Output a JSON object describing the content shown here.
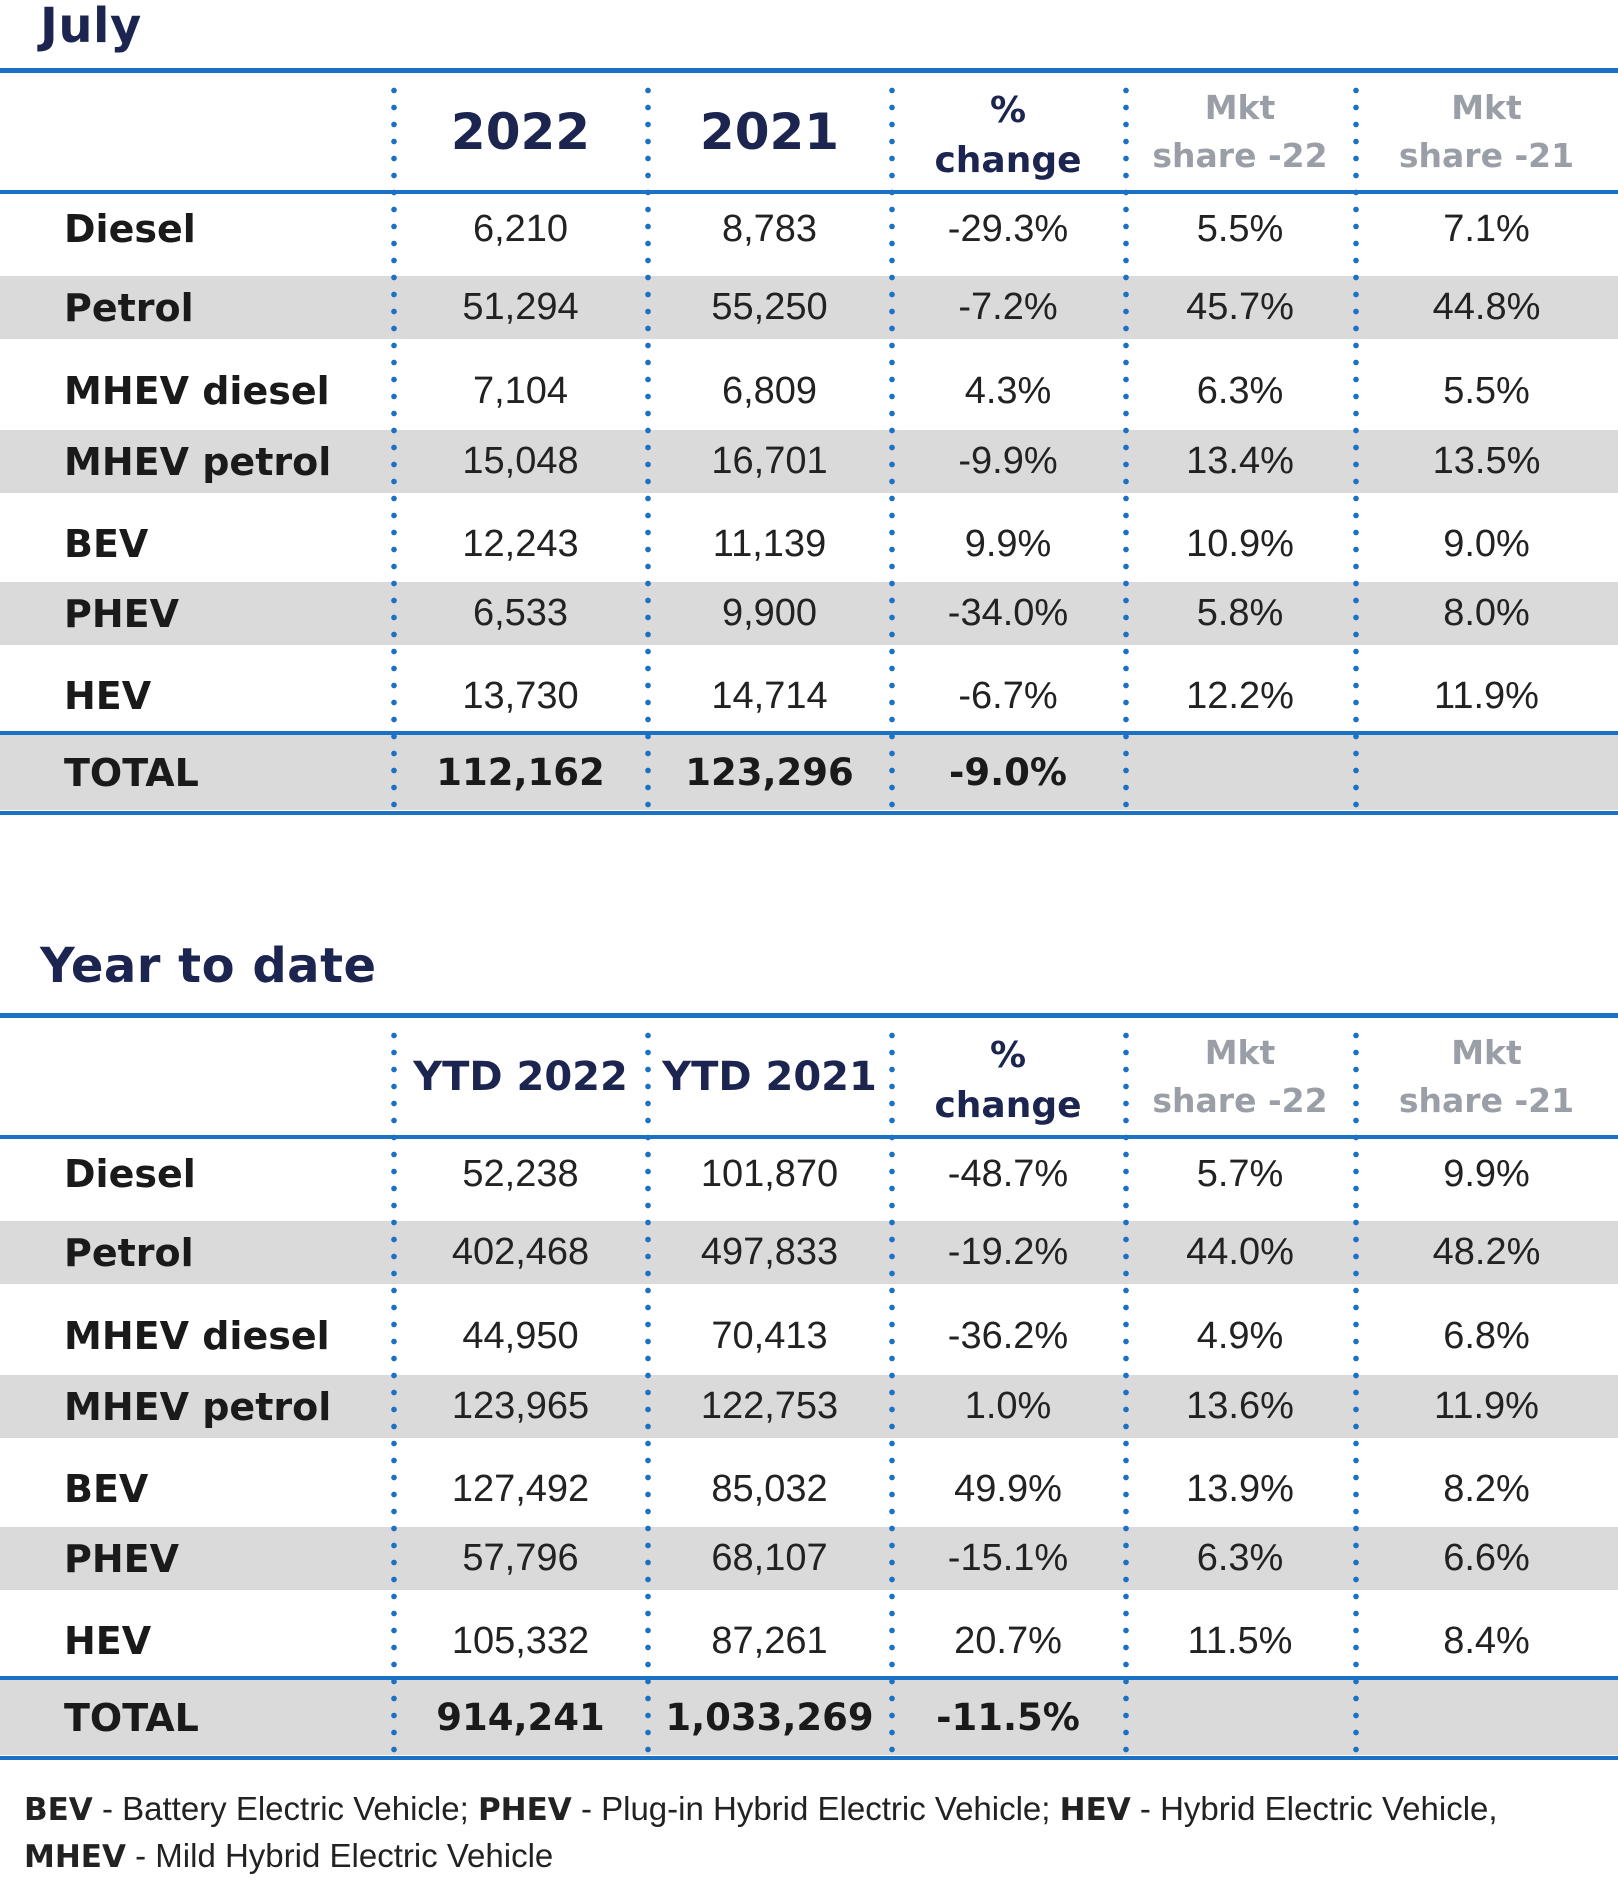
{
  "sections": [
    {
      "title": "July",
      "headers": [
        "2022",
        "2021",
        "% change",
        "Mkt share -22",
        "Mkt share -21"
      ],
      "rows": [
        {
          "label": "Diesel",
          "v1": "6,210",
          "v2": "8,783",
          "pct": "-29.3%",
          "s1": "5.5%",
          "s2": "7.1%"
        },
        {
          "label": "Petrol",
          "v1": "51,294",
          "v2": "55,250",
          "pct": "-7.2%",
          "s1": "45.7%",
          "s2": "44.8%"
        },
        {
          "label": "MHEV diesel",
          "v1": "7,104",
          "v2": "6,809",
          "pct": "4.3%",
          "s1": "6.3%",
          "s2": "5.5%"
        },
        {
          "label": "MHEV petrol",
          "v1": "15,048",
          "v2": "16,701",
          "pct": "-9.9%",
          "s1": "13.4%",
          "s2": "13.5%"
        },
        {
          "label": "BEV",
          "v1": "12,243",
          "v2": "11,139",
          "pct": "9.9%",
          "s1": "10.9%",
          "s2": "9.0%"
        },
        {
          "label": "PHEV",
          "v1": "6,533",
          "v2": "9,900",
          "pct": "-34.0%",
          "s1": "5.8%",
          "s2": "8.0%"
        },
        {
          "label": "HEV",
          "v1": "13,730",
          "v2": "14,714",
          "pct": "-6.7%",
          "s1": "12.2%",
          "s2": "11.9%"
        }
      ],
      "total": {
        "label": "TOTAL",
        "v1": "112,162",
        "v2": "123,296",
        "pct": "-9.0%"
      }
    },
    {
      "title": "Year to date",
      "headers": [
        "YTD 2022",
        "YTD 2021",
        "% change",
        "Mkt share -22",
        "Mkt share -21"
      ],
      "rows": [
        {
          "label": "Diesel",
          "v1": "52,238",
          "v2": "101,870",
          "pct": "-48.7%",
          "s1": "5.7%",
          "s2": "9.9%"
        },
        {
          "label": "Petrol",
          "v1": "402,468",
          "v2": "497,833",
          "pct": "-19.2%",
          "s1": "44.0%",
          "s2": "48.2%"
        },
        {
          "label": "MHEV diesel",
          "v1": "44,950",
          "v2": "70,413",
          "pct": "-36.2%",
          "s1": "4.9%",
          "s2": "6.8%"
        },
        {
          "label": "MHEV petrol",
          "v1": "123,965",
          "v2": "122,753",
          "pct": "1.0%",
          "s1": "13.6%",
          "s2": "11.9%"
        },
        {
          "label": "BEV",
          "v1": "127,492",
          "v2": "85,032",
          "pct": "49.9%",
          "s1": "13.9%",
          "s2": "8.2%"
        },
        {
          "label": "PHEV",
          "v1": "57,796",
          "v2": "68,107",
          "pct": "-15.1%",
          "s1": "6.3%",
          "s2": "6.6%"
        },
        {
          "label": "HEV",
          "v1": "105,332",
          "v2": "87,261",
          "pct": "20.7%",
          "s1": "11.5%",
          "s2": "8.4%"
        }
      ],
      "total": {
        "label": "TOTAL",
        "v1": "914,241",
        "v2": "1,033,269",
        "pct": "-11.5%"
      }
    }
  ],
  "footnote": {
    "bev_abbr": "BEV",
    "bev_text": " - Battery Electric Vehicle; ",
    "phev_abbr": "PHEV",
    "phev_text": " - Plug-in Hybrid Electric Vehicle; ",
    "hev_abbr": "HEV",
    "hev_text": " - Hybrid Electric Vehicle,",
    "mhev_abbr": "MHEV",
    "mhev_text": " - Mild Hybrid Electric Vehicle"
  },
  "colors": {
    "rule": "#1b72c4",
    "title": "#1c2550",
    "shade": "#dadadb",
    "muted_header": "#9a9ea6"
  }
}
